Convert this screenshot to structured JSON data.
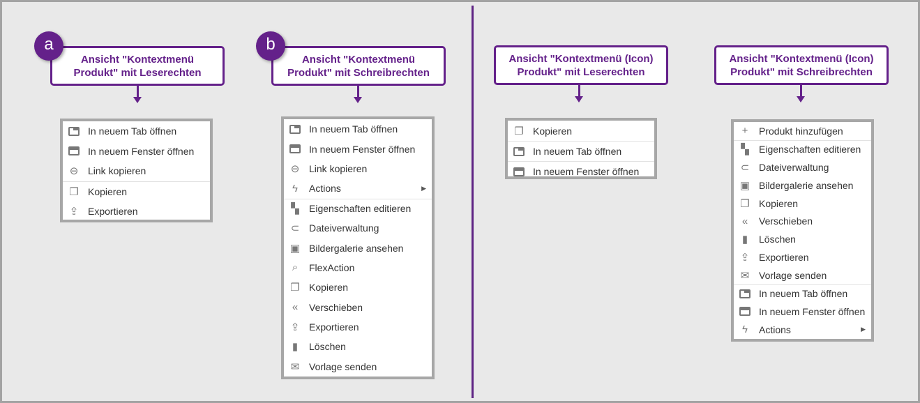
{
  "panels": [
    {
      "badge": "a",
      "title_line1": "Ansicht \"Kontextmenü",
      "title_line2": "Produkt\" mit Leserechten",
      "items": [
        {
          "label": "In neuem Tab öffnen",
          "icon": "tab-icon"
        },
        {
          "label": "In neuem Fenster öffnen",
          "icon": "window-icon"
        },
        {
          "label": "Link kopieren",
          "icon": "link-icon"
        },
        {
          "label": "Kopieren",
          "icon": "copy-icon",
          "divider": true
        },
        {
          "label": "Exportieren",
          "icon": "export-icon"
        }
      ]
    },
    {
      "badge": "b",
      "title_line1": "Ansicht \"Kontextmenü",
      "title_line2": "Produkt\" mit Schreibrechten",
      "items": [
        {
          "label": "In neuem Tab öffnen",
          "icon": "tab-icon"
        },
        {
          "label": "In neuem Fenster öffnen",
          "icon": "window-icon"
        },
        {
          "label": "Link kopieren",
          "icon": "link-icon"
        },
        {
          "label": "Actions",
          "icon": "bolt-icon",
          "submenu": true
        },
        {
          "label": "Eigenschaften editieren",
          "icon": "properties-icon",
          "divider": true
        },
        {
          "label": "Dateiverwaltung",
          "icon": "paperclip-icon"
        },
        {
          "label": "Bildergalerie ansehen",
          "icon": "image-icon"
        },
        {
          "label": "FlexAction",
          "icon": "search-box-icon"
        },
        {
          "label": "Kopieren",
          "icon": "copy-icon"
        },
        {
          "label": "Verschieben",
          "icon": "reply-all-icon"
        },
        {
          "label": "Exportieren",
          "icon": "export-icon"
        },
        {
          "label": "Löschen",
          "icon": "trash-icon"
        },
        {
          "label": "Vorlage senden",
          "icon": "send-mail-icon"
        }
      ]
    },
    {
      "badge": "",
      "title_line1": "Ansicht \"Kontextmenü (Icon)",
      "title_line2": "Produkt\" mit Leserechten",
      "items": [
        {
          "label": "Kopieren",
          "icon": "copy-icon"
        },
        {
          "label": "In neuem Tab öffnen",
          "icon": "tab-icon",
          "divider": true
        },
        {
          "label": "In neuem Fenster öffnen",
          "icon": "window-icon",
          "divider": true
        }
      ]
    },
    {
      "badge": "",
      "title_line1": "Ansicht \"Kontextmenü (Icon)",
      "title_line2": "Produkt\" mit Schreibrechten",
      "items": [
        {
          "label": "Produkt hinzufügen",
          "icon": "plus-icon"
        },
        {
          "label": "Eigenschaften editieren",
          "icon": "properties-icon",
          "divider": true
        },
        {
          "label": "Dateiverwaltung",
          "icon": "paperclip-icon"
        },
        {
          "label": "Bildergalerie ansehen",
          "icon": "image-icon"
        },
        {
          "label": "Kopieren",
          "icon": "copy-icon"
        },
        {
          "label": "Verschieben",
          "icon": "reply-all-icon"
        },
        {
          "label": "Löschen",
          "icon": "trash-icon"
        },
        {
          "label": "Exportieren",
          "icon": "export-icon"
        },
        {
          "label": "Vorlage senden",
          "icon": "send-mail-icon"
        },
        {
          "label": "In neuem Tab öffnen",
          "icon": "tab-icon",
          "divider": true
        },
        {
          "label": "In neuem Fenster öffnen",
          "icon": "window-icon"
        },
        {
          "label": "Actions",
          "icon": "bolt-icon",
          "submenu": true
        }
      ]
    }
  ],
  "colors": {
    "accent": "#64218a",
    "menu_border": "#a7a7a7",
    "background": "#e9e9e9"
  }
}
